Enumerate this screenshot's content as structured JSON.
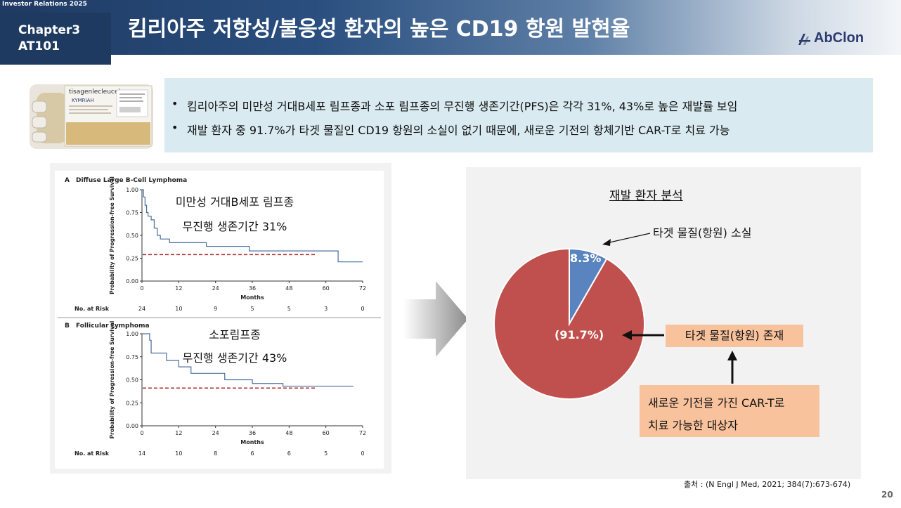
{
  "header": {
    "ir_label": "Investor Relations 2025",
    "chapter": "Chapter3",
    "section": "AT101",
    "title": "킴리아주 저항성/불응성 환자의 높은 CD19 항원 발현율",
    "logo_text": "AbClon",
    "colors": {
      "navy": "#1e3a60",
      "logo": "#2b3b6f"
    }
  },
  "product": {
    "label_top": "tisagenlecleucel",
    "label_brand": "KYMRIAH",
    "icon": "product-package-image"
  },
  "bullets": [
    "킴리아주의 미만성 거대B세포 림프종과 소포 림프종의 무진행 생존기간(PFS)은 각각 31%, 43%로 높은 재발률 보임",
    "재발 환자 중 91.7%가 타겟 물질인 CD19 항원의 소실이 없기 때문에, 새로운 기전의 항체기반 CAR-T로 치료 가능"
  ],
  "km": {
    "x_ticks": [
      "0",
      "12",
      "24",
      "36",
      "48",
      "60",
      "72"
    ],
    "y_ticks": [
      "1.00",
      "0.75",
      "0.50",
      "0.25",
      "0.00"
    ],
    "y_label": "Probability of Progression-free Survival",
    "x_label": "Months",
    "risk_label": "No. at Risk",
    "panels": [
      {
        "letter": "A",
        "title": "Diffuse Large B-Cell Lymphoma",
        "overlay_line1": "미만성 거대B세포 림프종",
        "overlay_line2": "무진행 생존기간 31%",
        "at_risk": [
          "24",
          "10",
          "9",
          "5",
          "5",
          "3",
          "0"
        ],
        "reference_level": 0.29,
        "curve": [
          [
            0,
            1.0
          ],
          [
            0.5,
            0.92
          ],
          [
            1,
            0.83
          ],
          [
            1.5,
            0.75
          ],
          [
            2,
            0.71
          ],
          [
            3,
            0.67
          ],
          [
            4,
            0.58
          ],
          [
            5,
            0.5
          ],
          [
            6,
            0.46
          ],
          [
            9,
            0.42
          ],
          [
            21,
            0.38
          ],
          [
            35,
            0.33
          ],
          [
            64,
            0.21
          ],
          [
            72,
            0.21
          ]
        ]
      },
      {
        "letter": "B",
        "title": "Follicular Lymphoma",
        "overlay_line1": "소포림프종",
        "overlay_line2": "무진행 생존기간 43%",
        "at_risk": [
          "14",
          "10",
          "8",
          "6",
          "6",
          "5",
          "0"
        ],
        "reference_level": 0.41,
        "curve": [
          [
            0,
            1.0
          ],
          [
            2.5,
            0.93
          ],
          [
            3,
            0.79
          ],
          [
            8,
            0.71
          ],
          [
            12,
            0.64
          ],
          [
            16,
            0.57
          ],
          [
            27,
            0.5
          ],
          [
            36,
            0.46
          ],
          [
            46,
            0.43
          ],
          [
            69,
            0.43
          ]
        ]
      }
    ]
  },
  "pie": {
    "title": "재발 환자 분석",
    "label_loss": "타겟 물질(항원) 소실",
    "label_exist": "타겟 물질(항원) 존재",
    "label_new_line1": "새로운 기전을 가진 CAR-T로",
    "label_new_line2": "치료 가능한 대상자",
    "pct_loss": "8.3%",
    "pct_exist": "(91.7%)",
    "colors": {
      "loss": "#5a84c0",
      "exist": "#c0504d",
      "callout": "#f8c29d"
    }
  },
  "chart_data": {
    "type": "pie",
    "title": "재발 환자 분석",
    "labels": [
      "타겟 물질(항원) 소실",
      "타겟 물질(항원) 존재"
    ],
    "values": [
      8.3,
      91.7
    ],
    "colors": [
      "#5a84c0",
      "#c0504d"
    ]
  },
  "footer": {
    "source": "출처 : (N Engl J Med, 2021; 384(7):673-674)",
    "page": "20"
  }
}
